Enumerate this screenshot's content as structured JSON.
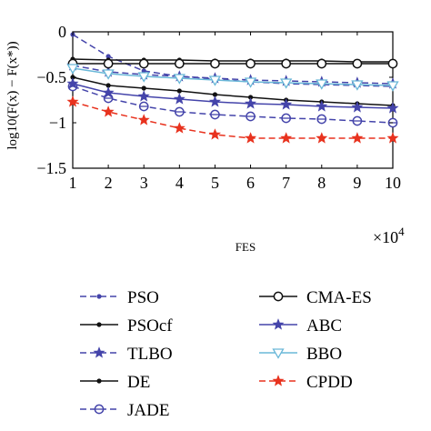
{
  "chart_data": {
    "type": "line",
    "xlabel": "FES",
    "ylabel": "log10(F(x) − F(x*))",
    "x_multiplier": "×10",
    "x_multiplier_exp": "4",
    "x": [
      1,
      2,
      3,
      4,
      5,
      6,
      7,
      8,
      9,
      10
    ],
    "xlim": [
      1,
      10
    ],
    "ylim": [
      -1.5,
      0
    ],
    "x_ticks": [
      "1",
      "2",
      "3",
      "4",
      "5",
      "6",
      "7",
      "8",
      "9",
      "10"
    ],
    "y_ticks": [
      "0",
      "−0.5",
      "−1",
      "−1.5"
    ],
    "y_tick_values": [
      0,
      -0.5,
      -1,
      -1.5
    ],
    "legend_position": "bottom",
    "series": [
      {
        "name": "PSO",
        "color": "#4444aa",
        "dash": "dashed",
        "marker": "dot",
        "values": [
          -0.03,
          -0.27,
          -0.43,
          -0.49,
          -0.52,
          -0.55,
          -0.57,
          -0.58,
          -0.59,
          -0.6
        ]
      },
      {
        "name": "PSOcf",
        "color": "#111111",
        "dash": "solid",
        "marker": "dot",
        "values": [
          -0.5,
          -0.59,
          -0.62,
          -0.65,
          -0.69,
          -0.72,
          -0.75,
          -0.77,
          -0.79,
          -0.81
        ]
      },
      {
        "name": "TLBO",
        "color": "#4444aa",
        "dash": "dashed",
        "marker": "star",
        "values": [
          -0.37,
          -0.44,
          -0.47,
          -0.49,
          -0.51,
          -0.53,
          -0.54,
          -0.55,
          -0.56,
          -0.57
        ]
      },
      {
        "name": "DE",
        "color": "#111111",
        "dash": "solid",
        "marker": "dot",
        "values": [
          -0.3,
          -0.31,
          -0.31,
          -0.31,
          -0.32,
          -0.32,
          -0.32,
          -0.32,
          -0.33,
          -0.33
        ]
      },
      {
        "name": "JADE",
        "color": "#4444aa",
        "dash": "dashed",
        "marker": "circle-dash",
        "values": [
          -0.6,
          -0.73,
          -0.82,
          -0.88,
          -0.91,
          -0.93,
          -0.95,
          -0.96,
          -0.98,
          -1.0
        ]
      },
      {
        "name": "CMA-ES",
        "color": "#111111",
        "dash": "solid",
        "marker": "circle",
        "values": [
          -0.35,
          -0.35,
          -0.35,
          -0.35,
          -0.35,
          -0.35,
          -0.35,
          -0.35,
          -0.35,
          -0.35
        ]
      },
      {
        "name": "ABC",
        "color": "#4444aa",
        "dash": "solid",
        "marker": "star",
        "values": [
          -0.57,
          -0.67,
          -0.71,
          -0.74,
          -0.77,
          -0.79,
          -0.8,
          -0.82,
          -0.83,
          -0.84
        ]
      },
      {
        "name": "BBO",
        "color": "#6ab8d8",
        "dash": "solid",
        "marker": "triangle-down",
        "values": [
          -0.4,
          -0.46,
          -0.49,
          -0.51,
          -0.53,
          -0.55,
          -0.56,
          -0.57,
          -0.58,
          -0.59
        ]
      },
      {
        "name": "CPDD",
        "color": "#e8321e",
        "dash": "dashed",
        "marker": "star",
        "values": [
          -0.77,
          -0.88,
          -0.97,
          -1.06,
          -1.13,
          -1.17,
          -1.17,
          -1.17,
          -1.17,
          -1.17
        ]
      }
    ]
  }
}
